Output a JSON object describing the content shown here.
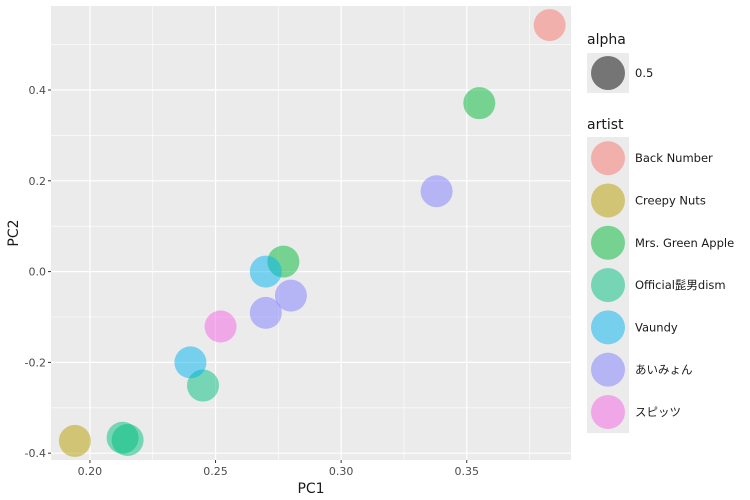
{
  "chart_data": {
    "type": "scatter",
    "title": "",
    "xlabel": "PC1",
    "ylabel": "PC2",
    "xlim": [
      0.1845,
      0.3915
    ],
    "ylim": [
      -0.415,
      0.585
    ],
    "x_ticks": [
      0.2,
      0.25,
      0.3,
      0.35
    ],
    "x_tick_labels": [
      "0.20",
      "0.25",
      "0.30",
      "0.35"
    ],
    "y_ticks": [
      -0.4,
      -0.2,
      0.0,
      0.2,
      0.4
    ],
    "y_tick_labels": [
      "-0.4",
      "-0.2",
      "0.0",
      "0.2",
      "0.4"
    ],
    "grid": true,
    "point_alpha": 0.5,
    "legend_position": "right",
    "legend": {
      "alpha_title": "alpha",
      "alpha_value_label": "0.5",
      "artist_title": "artist"
    },
    "series": [
      {
        "name": "Back Number",
        "color": "#F8766D",
        "points": [
          [
            0.383,
            0.543
          ]
        ]
      },
      {
        "name": "Creepy Nuts",
        "color": "#B79F00",
        "points": [
          [
            0.194,
            -0.373
          ]
        ]
      },
      {
        "name": "Mrs. Green Apple",
        "color": "#00BA38",
        "points": [
          [
            0.355,
            0.371
          ],
          [
            0.277,
            0.022
          ]
        ]
      },
      {
        "name": "Official髭男dism",
        "color": "#00BF7D",
        "points": [
          [
            0.245,
            -0.251
          ],
          [
            0.213,
            -0.366
          ],
          [
            0.215,
            -0.371
          ]
        ]
      },
      {
        "name": "Vaundy",
        "color": "#00B4EF",
        "points": [
          [
            0.27,
            0.0
          ],
          [
            0.24,
            -0.2
          ]
        ]
      },
      {
        "name": "あいみょん",
        "color": "#7F7FFF",
        "points": [
          [
            0.338,
            0.177
          ],
          [
            0.28,
            -0.053
          ],
          [
            0.27,
            -0.091
          ]
        ]
      },
      {
        "name": "スピッツ",
        "color": "#F464E3",
        "points": [
          [
            0.252,
            -0.121
          ]
        ]
      }
    ]
  }
}
